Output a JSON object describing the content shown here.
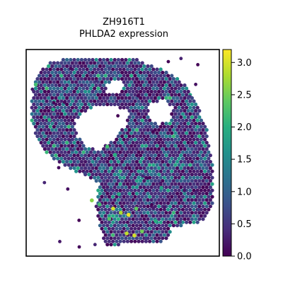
{
  "chart_data": {
    "type": "scatter",
    "subtype": "spatial-hexbin",
    "title_line1": "ZH916T1",
    "title_line2": "PHLDA2 expression",
    "xlabel": "",
    "ylabel": "",
    "axes_ticks_visible": false,
    "grid": false,
    "colormap": "viridis",
    "colorbar": {
      "label": "",
      "vmin": 0.0,
      "vmax": 3.2,
      "ticks": [
        0.0,
        0.5,
        1.0,
        1.5,
        2.0,
        2.5,
        3.0
      ],
      "tick_labels": [
        "0.0",
        "0.5",
        "1.0",
        "1.5",
        "2.0",
        "2.5",
        "3.0"
      ]
    },
    "tissue_region": {
      "description_hidden": true,
      "typical_expression": 0.5,
      "expression_range": [
        0.0,
        3.2
      ]
    },
    "highlighted_spots": [
      {
        "x": 0.05,
        "y": 0.83,
        "value": 2.2
      },
      {
        "x": 0.12,
        "y": 0.66,
        "value": 2.0
      },
      {
        "x": 0.14,
        "y": 0.71,
        "value": 1.9
      },
      {
        "x": 0.42,
        "y": 0.53,
        "value": 2.2
      },
      {
        "x": 0.46,
        "y": 0.49,
        "value": 2.0
      },
      {
        "x": 0.34,
        "y": 0.27,
        "value": 2.6
      },
      {
        "x": 0.38,
        "y": 0.25,
        "value": 2.2
      },
      {
        "x": 0.45,
        "y": 0.23,
        "value": 3.0
      },
      {
        "x": 0.49,
        "y": 0.21,
        "value": 2.8
      },
      {
        "x": 0.53,
        "y": 0.2,
        "value": 3.1
      },
      {
        "x": 0.57,
        "y": 0.23,
        "value": 2.4
      },
      {
        "x": 0.52,
        "y": 0.11,
        "value": 2.9
      },
      {
        "x": 0.56,
        "y": 0.1,
        "value": 3.0
      },
      {
        "x": 0.6,
        "y": 0.12,
        "value": 2.5
      },
      {
        "x": 0.67,
        "y": 0.17,
        "value": 2.0
      },
      {
        "x": 0.7,
        "y": 0.33,
        "value": 1.8
      },
      {
        "x": 0.43,
        "y": 0.18,
        "value": 2.3
      },
      {
        "x": 0.48,
        "y": 0.3,
        "value": 1.9
      }
    ]
  }
}
